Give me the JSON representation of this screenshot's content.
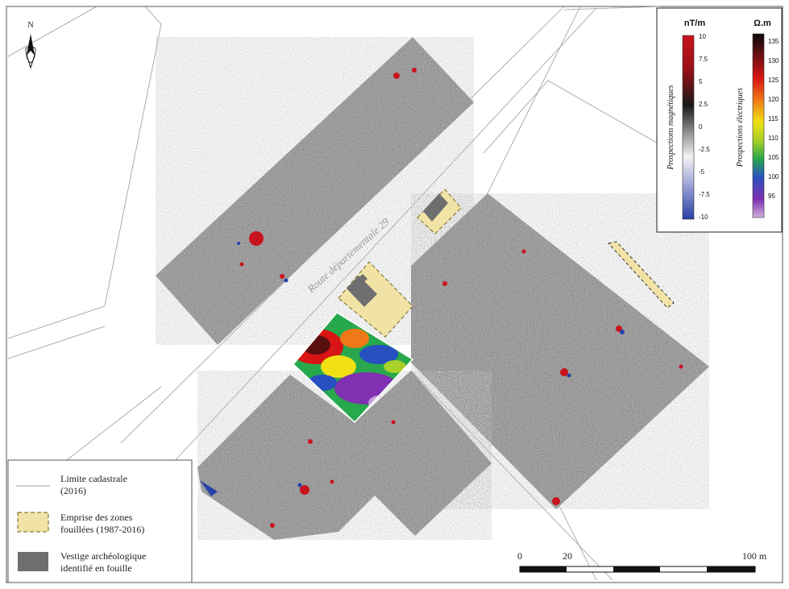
{
  "north_arrow": {
    "label": "N"
  },
  "road": {
    "label": "Route départementale 29"
  },
  "legend_scales": {
    "magnetic": {
      "unit": "nT/m",
      "title": "Prospections magnétiques",
      "ticks": [
        "10",
        "7.5",
        "5",
        "2.5",
        "0",
        "-2.5",
        "-5",
        "-7.5",
        "-10"
      ],
      "colors": [
        "#c8141e",
        "#b01018",
        "#6a0f12",
        "#141414",
        "#7d7d7d",
        "#f0f0f0",
        "#b8b8dc",
        "#5868b8",
        "#2840a8"
      ]
    },
    "electric": {
      "unit": "Ω.m",
      "title": "Prospections électriques",
      "ticks": [
        "135",
        "130",
        "125",
        "120",
        "115",
        "110",
        "105",
        "100",
        "95"
      ],
      "colors": [
        "#0a0a0a",
        "#6e1010",
        "#d81414",
        "#f07818",
        "#f0e014",
        "#a8d028",
        "#28a84c",
        "#2850c0",
        "#8030b0",
        "#c8a0d8"
      ]
    }
  },
  "legend": {
    "items": [
      {
        "label_line1": "Limite cadastrale",
        "label_line2": "(2016)"
      },
      {
        "label_line1": "Emprise des zones",
        "label_line2": "fouillées (1987-2016)"
      },
      {
        "label_line1": "Vestige archéologique",
        "label_line2": "identifié en fouille"
      }
    ],
    "colors": {
      "excavation_fill": "#f0e3a5",
      "excavation_stroke": "#8a7a3a",
      "vestige_fill": "#6e6e6e"
    }
  },
  "scale_bar": {
    "tick_0": "0",
    "tick_20": "20",
    "tick_100": "100 m"
  }
}
